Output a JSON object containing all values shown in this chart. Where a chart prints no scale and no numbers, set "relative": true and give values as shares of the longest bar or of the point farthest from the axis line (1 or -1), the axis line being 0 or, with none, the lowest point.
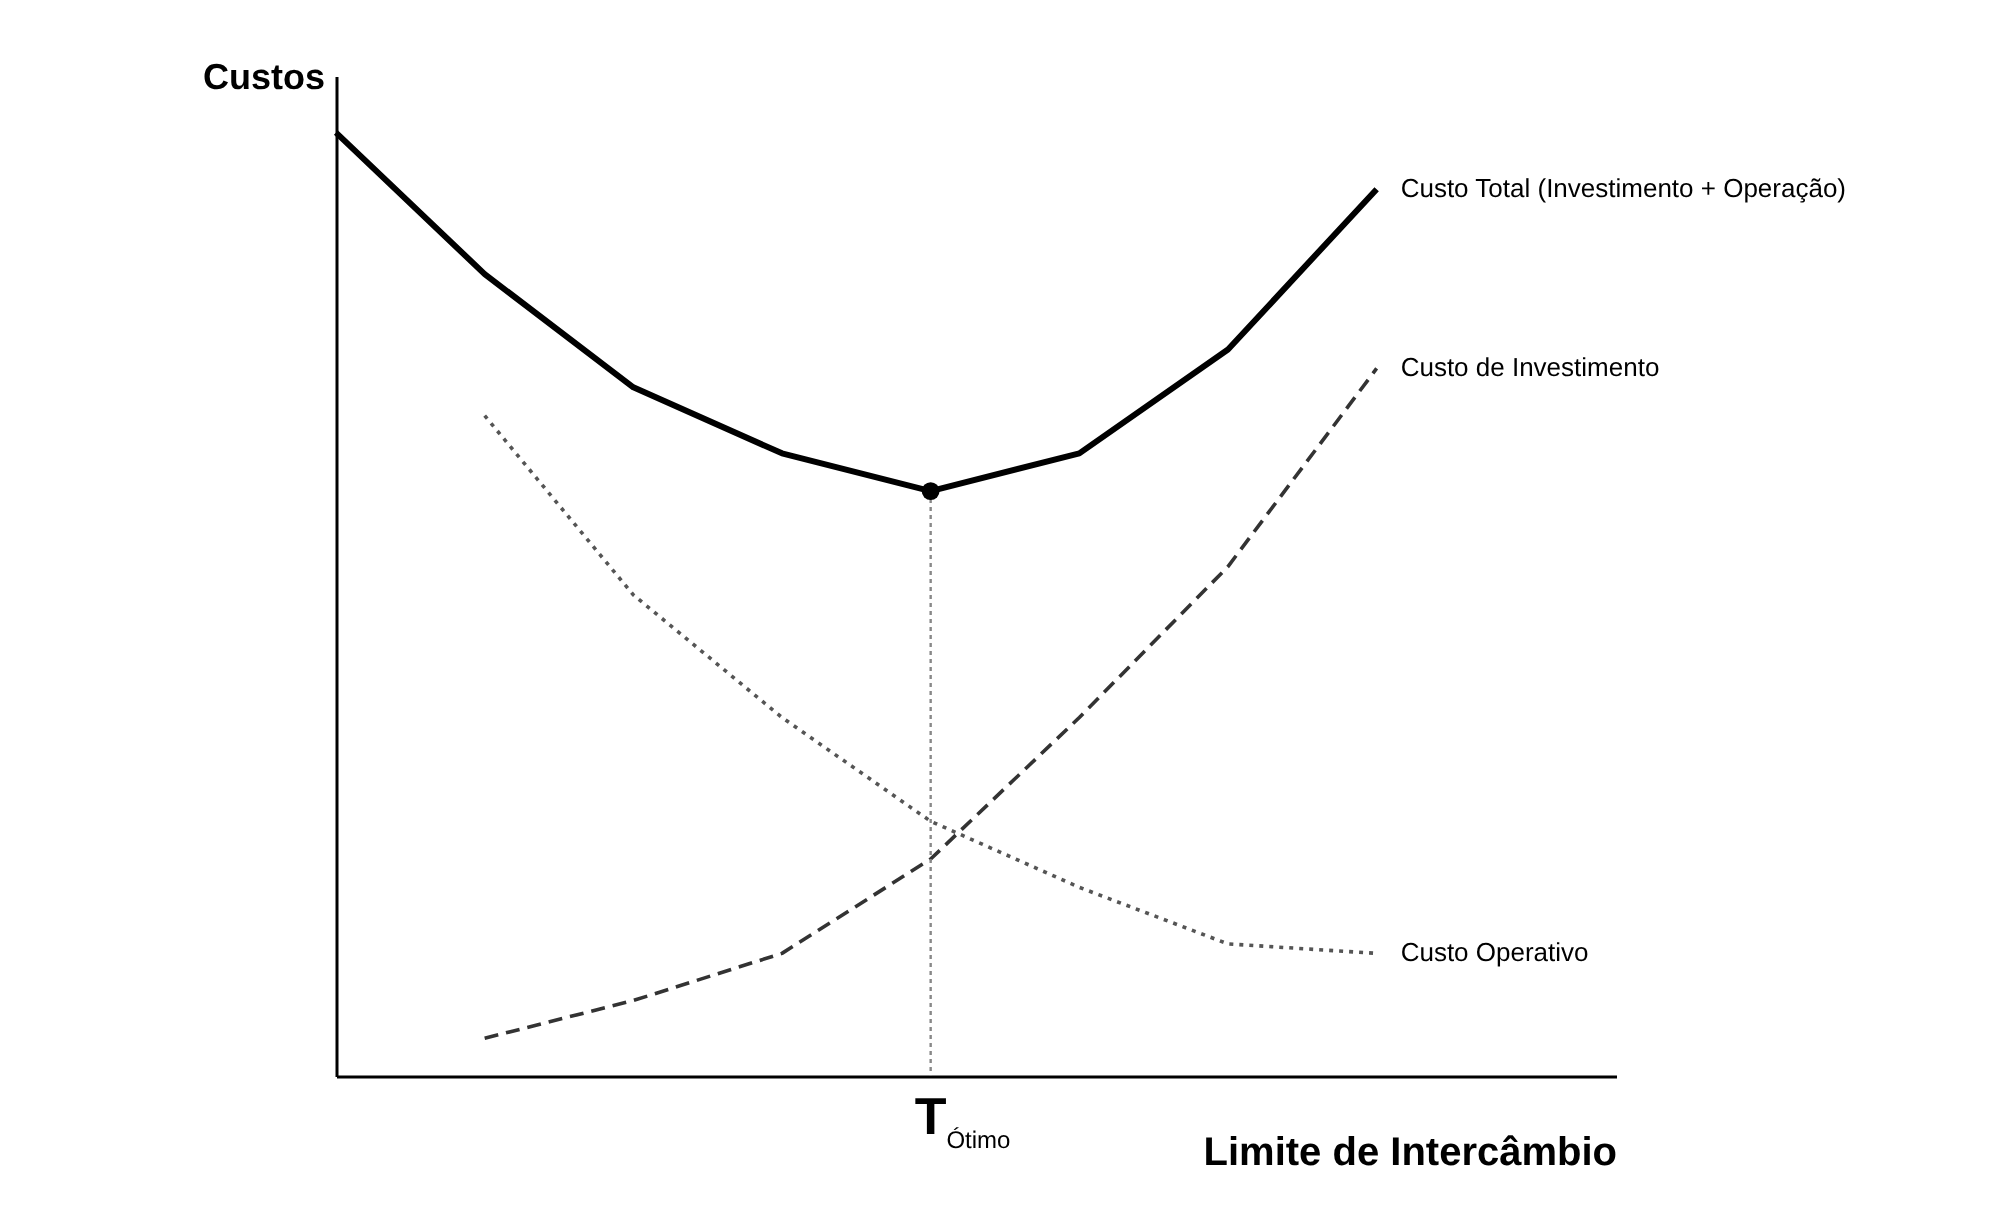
{
  "chart_data": {
    "type": "line",
    "relative": true,
    "xlabel": "Limite de Intercâmbio",
    "ylabel": "Custos",
    "categories": [
      null,
      null,
      null,
      null,
      null,
      null,
      null,
      null
    ],
    "series": [
      {
        "name": "Custo Total (Investimento + Operação)",
        "color": "#000000",
        "line_style": "solid",
        "values": [
          1.0,
          0.85,
          0.73,
          0.66,
          0.62,
          0.66,
          0.77,
          0.94
        ]
      },
      {
        "name": "Custo de Investimento",
        "color": "#333333",
        "line_style": "dashed",
        "values": [
          null,
          0.04,
          0.08,
          0.13,
          0.23,
          0.38,
          0.54,
          0.75
        ]
      },
      {
        "name": "Custo Operativo",
        "color": "#555555",
        "line_style": "dotted",
        "values": [
          null,
          0.7,
          0.51,
          0.38,
          0.27,
          0.2,
          0.14,
          0.13
        ]
      }
    ],
    "annotations": [
      "T$_{Ótimo}$"
    ]
  }
}
